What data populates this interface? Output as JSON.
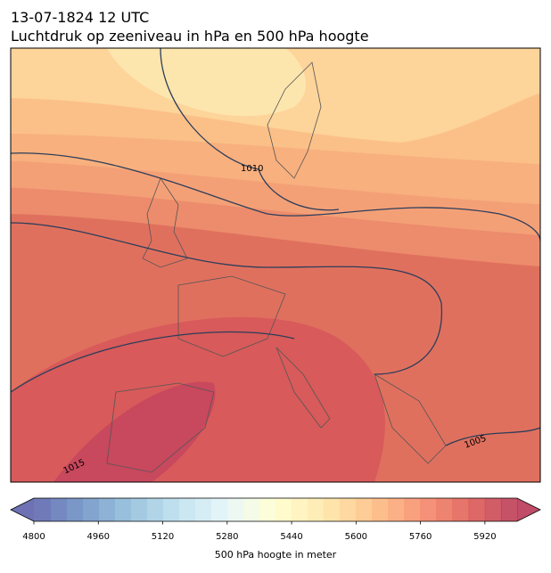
{
  "header": {
    "title": "13-07-1824 12 UTC",
    "subtitle": "Luchtdruk op zeeniveau in hPa en 500 hPa hoogte"
  },
  "map": {
    "contour_labels": [
      "1010",
      "1015",
      "1005"
    ]
  },
  "colorbar": {
    "label": "500 hPa hoogte in meter",
    "range": [
      4800,
      6000
    ],
    "bounds": [
      4800,
      4840,
      4880,
      4920,
      4960,
      5000,
      5040,
      5080,
      5120,
      5160,
      5200,
      5240,
      5280,
      5320,
      5360,
      5400,
      5440,
      5480,
      5520,
      5560,
      5600,
      5640,
      5680,
      5720,
      5760,
      5800,
      5840,
      5880,
      5920,
      5960,
      6000
    ],
    "ticks": [
      4800,
      4960,
      5120,
      5280,
      5440,
      5600,
      5760,
      5920
    ],
    "colormap": [
      "#313695",
      "#4575b4",
      "#74add1",
      "#abd9e9",
      "#e0f3f8",
      "#ffffbf",
      "#fee090",
      "#fdae61",
      "#f46d43",
      "#d73027",
      "#a50026"
    ],
    "alpha": 0.7,
    "extend": "both"
  }
}
